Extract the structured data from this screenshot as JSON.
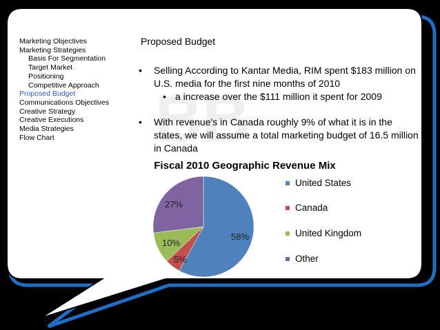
{
  "nav": [
    {
      "label": "Marketing Objectives",
      "sub": false,
      "active": false
    },
    {
      "label": "Marketing Strategies",
      "sub": false,
      "active": false
    },
    {
      "label": "Basis For Segmentation",
      "sub": true,
      "active": false
    },
    {
      "label": "Target Market",
      "sub": true,
      "active": false
    },
    {
      "label": "Positioning",
      "sub": true,
      "active": false
    },
    {
      "label": "Competitive Approach",
      "sub": true,
      "active": false
    },
    {
      "label": "Proposed Budget",
      "sub": false,
      "active": true
    },
    {
      "label": "Communications Objectives",
      "sub": false,
      "active": false
    },
    {
      "label": "Creative Strategy",
      "sub": false,
      "active": false
    },
    {
      "label": "Creative Executions",
      "sub": false,
      "active": false
    },
    {
      "label": "Media Strategies",
      "sub": false,
      "active": false
    },
    {
      "label": "Flow Chart",
      "sub": false,
      "active": false
    }
  ],
  "heading": "Proposed Budget",
  "bullets": {
    "b1": "Selling According to Kantar Media, RIM spent $183 million on U.S. media for the first nine months of 2010",
    "b1_sub": "a increase over the $111 million it spent for 2009",
    "b2": "With revenue's in Canada roughly 9% of what it is in the states, we will assume a total marketing budget of 16.5 million in Canada"
  },
  "colors": {
    "accent": "#2b5bd7",
    "frame_blue": "#1e6fc4"
  },
  "chart_data": {
    "type": "pie",
    "title": "Fiscal 2010 Geographic Revenue Mix",
    "categories": [
      "United States",
      "Canada",
      "United Kingdom",
      "Other"
    ],
    "values": [
      58,
      5,
      10,
      27
    ],
    "labels": [
      "58%",
      "5%",
      "10%",
      "27%"
    ],
    "colors": [
      "#4f81bd",
      "#c0504d",
      "#9bbb59",
      "#8064a2"
    ],
    "legend": "right"
  }
}
